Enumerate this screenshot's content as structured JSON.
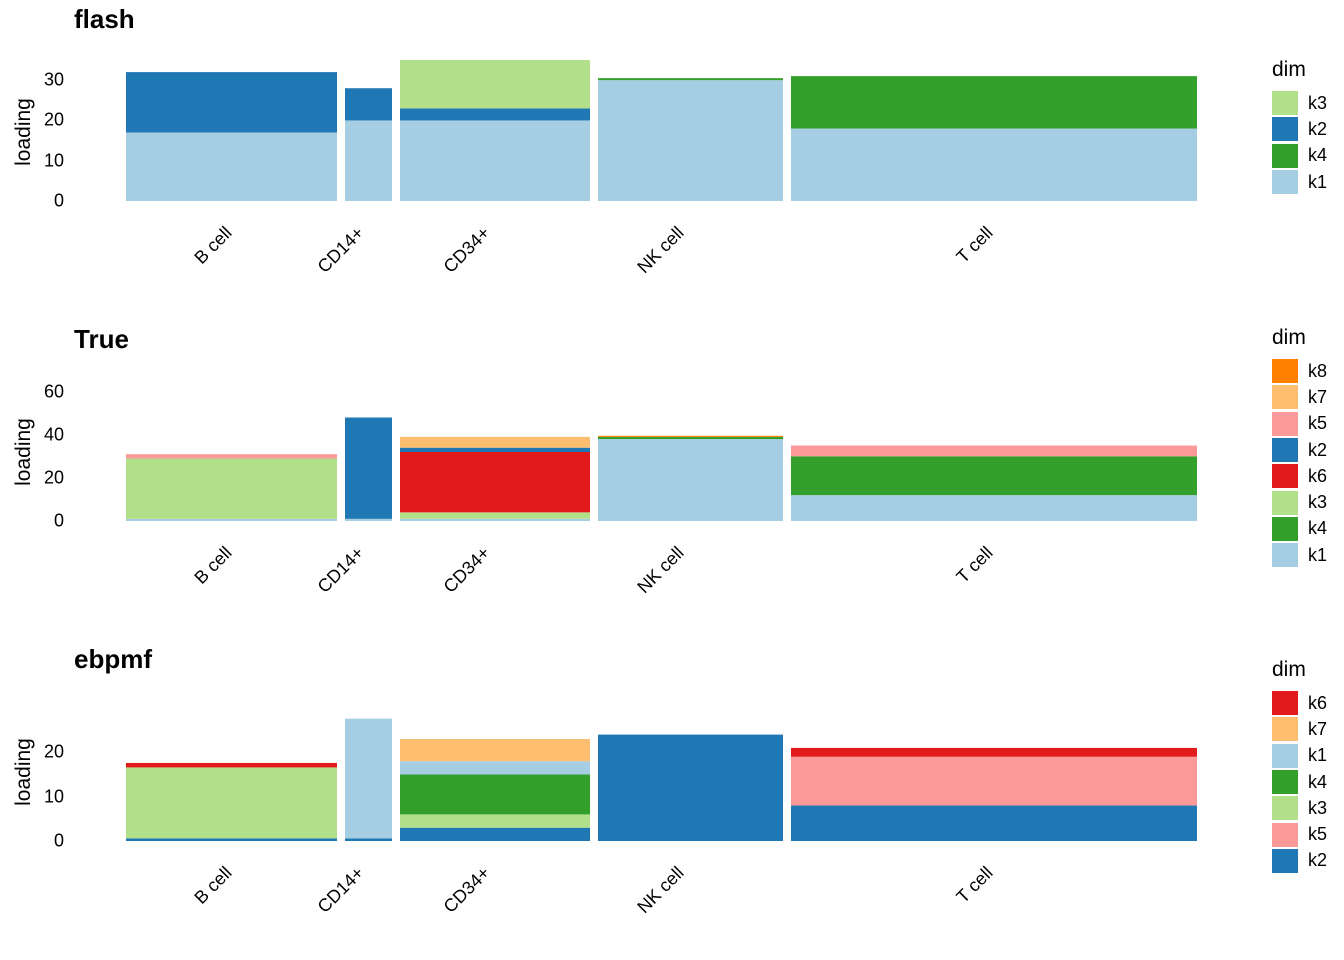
{
  "ylabel": "loading",
  "groups": [
    "B cell",
    "CD14+",
    "CD34+",
    "NK cell",
    "T cell"
  ],
  "colors": {
    "k1": "#a6cee3",
    "k2": "#1f78b4",
    "k3": "#b2df8a",
    "k4": "#33a02c",
    "k5": "#fb9a99",
    "k6": "#e31a1c",
    "k7": "#fdbf6f",
    "k8": "#ff7f00"
  },
  "chart_data": [
    {
      "type": "bar",
      "stacked": true,
      "title": "flash",
      "ylabel": "loading",
      "yticks": [
        0,
        10,
        20,
        30
      ],
      "ylim": [
        0,
        36
      ],
      "legend_title": "dim",
      "legend": [
        "k3",
        "k2",
        "k4",
        "k1"
      ],
      "categories": [
        "B cell",
        "CD14+",
        "CD34+",
        "NK cell",
        "T cell"
      ],
      "series": [
        {
          "name": "k1",
          "values": [
            17,
            20,
            20,
            30,
            18
          ]
        },
        {
          "name": "k4",
          "values": [
            0,
            0,
            0,
            0.5,
            13
          ]
        },
        {
          "name": "k2",
          "values": [
            15,
            8,
            3,
            0,
            0
          ]
        },
        {
          "name": "k3",
          "values": [
            0,
            0,
            12,
            0,
            0
          ]
        }
      ]
    },
    {
      "type": "bar",
      "stacked": true,
      "title": "True",
      "ylabel": "loading",
      "yticks": [
        0,
        20,
        40,
        60
      ],
      "ylim": [
        0,
        64
      ],
      "legend_title": "dim",
      "legend": [
        "k8",
        "k7",
        "k5",
        "k2",
        "k6",
        "k3",
        "k4",
        "k1"
      ],
      "categories": [
        "B cell",
        "CD14+",
        "CD34+",
        "NK cell",
        "T cell"
      ],
      "series": [
        {
          "name": "k1",
          "values": [
            1,
            1,
            1,
            38,
            12
          ]
        },
        {
          "name": "k4",
          "values": [
            0,
            0,
            0,
            1,
            18
          ]
        },
        {
          "name": "k3",
          "values": [
            28,
            0,
            3,
            0,
            0
          ]
        },
        {
          "name": "k6",
          "values": [
            0,
            0,
            28,
            0,
            0
          ]
        },
        {
          "name": "k2",
          "values": [
            0,
            47,
            2,
            0,
            0
          ]
        },
        {
          "name": "k5",
          "values": [
            2,
            0,
            0,
            0,
            5
          ]
        },
        {
          "name": "k7",
          "values": [
            0,
            0,
            5,
            0,
            0
          ]
        },
        {
          "name": "k8",
          "values": [
            0,
            0,
            0,
            0.5,
            0
          ]
        }
      ]
    },
    {
      "type": "bar",
      "stacked": true,
      "title": "ebpmf",
      "ylabel": "loading",
      "yticks": [
        0,
        10,
        20
      ],
      "ylim": [
        0,
        30
      ],
      "legend_title": "dim",
      "legend": [
        "k6",
        "k7",
        "k1",
        "k4",
        "k3",
        "k5",
        "k2"
      ],
      "categories": [
        "B cell",
        "CD14+",
        "CD34+",
        "NK cell",
        "T cell"
      ],
      "series": [
        {
          "name": "k2",
          "values": [
            0.6,
            0.6,
            3,
            24,
            8
          ]
        },
        {
          "name": "k5",
          "values": [
            0,
            0,
            0,
            0,
            11
          ]
        },
        {
          "name": "k3",
          "values": [
            16,
            0,
            3,
            0,
            0
          ]
        },
        {
          "name": "k4",
          "values": [
            0,
            0,
            9,
            0,
            0
          ]
        },
        {
          "name": "k1",
          "values": [
            0,
            27,
            3,
            0,
            0
          ]
        },
        {
          "name": "k7",
          "values": [
            0,
            0,
            5,
            0,
            0
          ]
        },
        {
          "name": "k6",
          "values": [
            1,
            0,
            0,
            0,
            2
          ]
        }
      ]
    }
  ]
}
